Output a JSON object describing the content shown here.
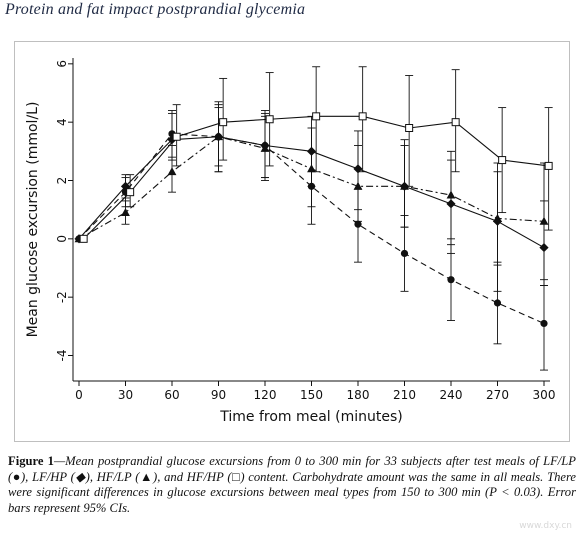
{
  "page": {
    "title": "Protein and fat impact postprandial glycemia"
  },
  "caption": {
    "label": "Figure 1",
    "text": "—Mean postprandial glucose excursions from 0 to 300 min for 33 subjects after test meals of LF/LP (●), LF/HP (◆), HF/LP (▲), and HF/HP (□) content. Carbohydrate amount was the same in all meals. There were significant differences in glucose excursions between meal types from 150 to 300 min (P < 0.03). Error bars represent 95% CIs."
  },
  "watermark": "www.dxy.cn",
  "colors": {
    "ink": "#111111",
    "frame": "#bfbfbf",
    "title": "#1f2a44"
  },
  "chart_data": {
    "type": "line",
    "xlabel": "Time from meal (minutes)",
    "ylabel": "Mean glucose excursion (mmol/L)",
    "xlim": [
      0,
      300
    ],
    "ylim": [
      -4.6,
      6.2
    ],
    "xticks": [
      "0",
      "30",
      "60",
      "90",
      "120",
      "150",
      "180",
      "210",
      "240",
      "270",
      "300"
    ],
    "xtick_values": [
      0,
      30,
      60,
      90,
      120,
      150,
      180,
      210,
      240,
      270,
      300
    ],
    "yticks": [
      "-4",
      "-2",
      "0",
      "2",
      "4",
      "6"
    ],
    "ytick_values": [
      -4,
      -2,
      0,
      2,
      4,
      6
    ],
    "grid": false,
    "series": [
      {
        "marker": "circle",
        "linestyle": "dashed",
        "x": [
          0,
          30,
          60,
          90,
          120,
          150,
          180,
          210,
          240,
          270,
          300
        ],
        "values": [
          0,
          1.6,
          3.6,
          3.5,
          3.2,
          1.8,
          0.5,
          -0.5,
          -1.4,
          -2.2,
          -2.9
        ],
        "ci_low": [
          0,
          1.1,
          2.8,
          2.5,
          2.1,
          0.5,
          -0.8,
          -1.8,
          -2.8,
          -3.6,
          -4.5
        ],
        "ci_high": [
          0,
          2.1,
          4.4,
          4.6,
          4.2,
          3.0,
          1.7,
          0.8,
          0.0,
          -0.8,
          -1.4
        ]
      },
      {
        "marker": "diamond",
        "linestyle": "solid",
        "x": [
          0,
          30,
          60,
          90,
          120,
          150,
          180,
          210,
          240,
          270,
          300
        ],
        "values": [
          0,
          1.8,
          3.4,
          3.5,
          3.2,
          3.0,
          2.4,
          1.8,
          1.2,
          0.6,
          -0.3
        ],
        "ci_low": [
          0,
          1.4,
          2.7,
          2.3,
          2.1,
          1.8,
          1.0,
          0.4,
          -0.5,
          -1.8,
          -1.6
        ],
        "ci_high": [
          0,
          2.2,
          4.3,
          4.7,
          4.4,
          4.2,
          3.7,
          3.2,
          2.7,
          2.3,
          1.3
        ]
      },
      {
        "marker": "triangle",
        "linestyle": "dashdot",
        "x": [
          0,
          30,
          60,
          90,
          120,
          150,
          180,
          210,
          240,
          270,
          300
        ],
        "values": [
          0,
          0.9,
          2.3,
          3.5,
          3.1,
          2.4,
          1.8,
          1.8,
          1.5,
          0.7,
          0.6
        ],
        "ci_low": [
          0,
          0.5,
          1.6,
          2.3,
          2.0,
          1.1,
          0.6,
          0.4,
          -0.2,
          -0.9,
          -1.6
        ],
        "ci_high": [
          0,
          1.3,
          3.2,
          4.5,
          4.3,
          3.8,
          3.2,
          3.4,
          3.0,
          2.6,
          2.6
        ]
      },
      {
        "marker": "square",
        "linestyle": "solid",
        "x": [
          3,
          33,
          63,
          93,
          123,
          153,
          183,
          213,
          243,
          273,
          303
        ],
        "values": [
          0,
          1.6,
          3.5,
          4.0,
          4.1,
          4.2,
          4.2,
          3.8,
          4.0,
          2.7,
          2.5
        ],
        "ci_low": [
          0,
          1.1,
          2.5,
          2.7,
          2.5,
          2.3,
          2.3,
          1.8,
          2.3,
          0.9,
          0.3
        ],
        "ci_high": [
          0,
          2.2,
          4.6,
          5.5,
          5.7,
          5.9,
          5.9,
          5.6,
          5.8,
          4.5,
          4.5
        ]
      }
    ]
  }
}
